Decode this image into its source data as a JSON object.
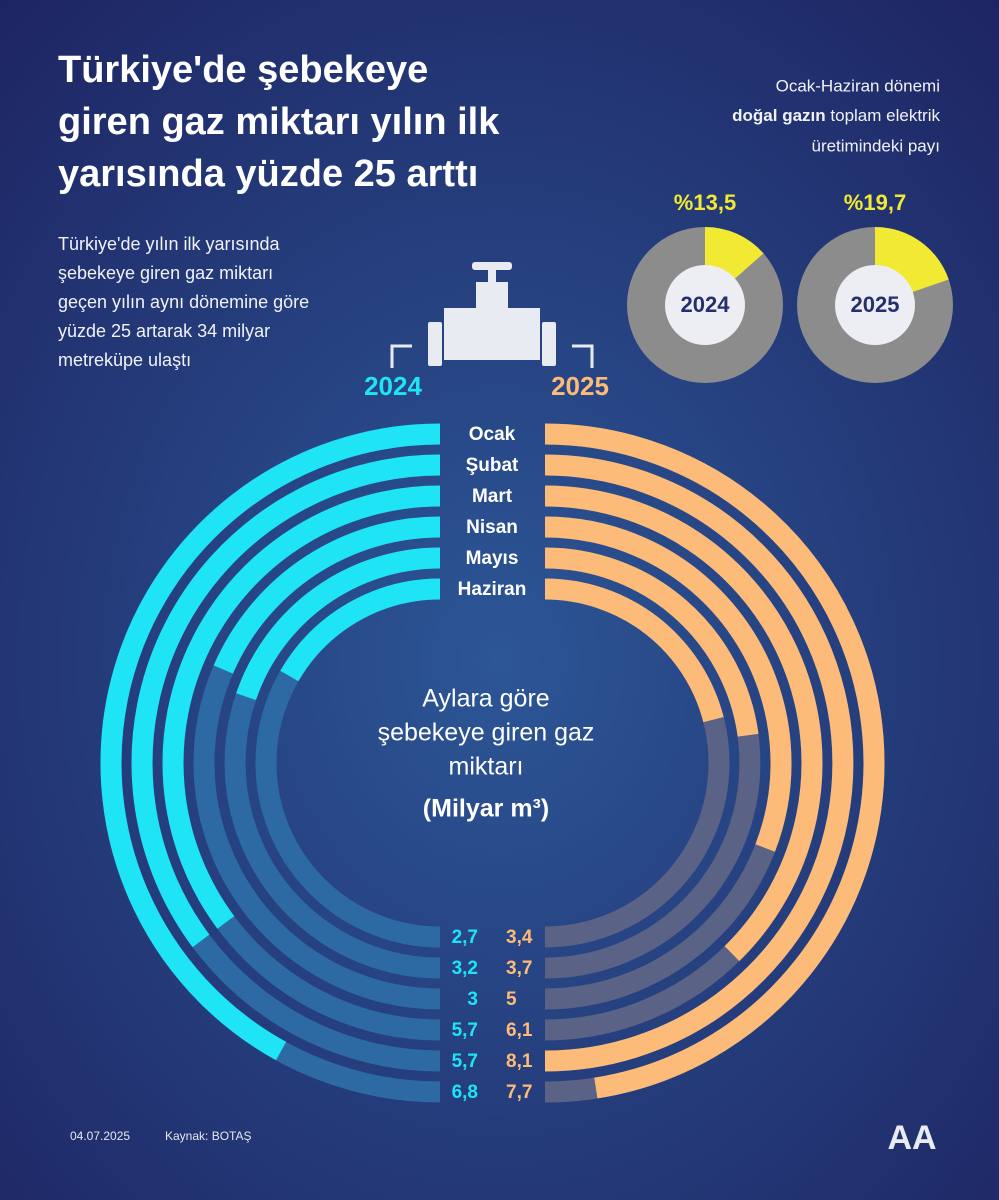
{
  "title": [
    "Türkiye'de şebekeye",
    "giren gaz miktarı yılın ilk",
    "yarısında yüzde 25 arttı"
  ],
  "description": [
    "Türkiye'de yılın ilk yarısında",
    "şebekeye giren gaz miktarı",
    "geçen yılın aynı dönemine göre",
    "yüzde 25 artarak 34 milyar",
    "metreküpe ulaştı"
  ],
  "pie_heading": {
    "line1": "Ocak-Haziran dönemi",
    "bold": "doğal gazın",
    "rest": "toplam elektrik",
    "line3": "üretimindeki payı"
  },
  "footer": {
    "date": "04.07.2025",
    "source": "Kaynak: BOTAŞ",
    "logo": "AA"
  },
  "chart_data": [
    {
      "type": "pie",
      "title": "2024",
      "values": [
        13.5
      ],
      "value_labels": [
        "%13,5"
      ],
      "color": "#f2e932",
      "rest_color": "#8c8c8c"
    },
    {
      "type": "pie",
      "title": "2025",
      "values": [
        19.7
      ],
      "value_labels": [
        "%19,7"
      ],
      "color": "#f2e932",
      "rest_color": "#8c8c8c"
    },
    {
      "type": "radial_bar",
      "title": [
        "Aylara göre",
        "şebekeye giren gaz",
        "miktarı"
      ],
      "unit": "(Milyar m³)",
      "categories": [
        "Ocak",
        "Şubat",
        "Mart",
        "Nisan",
        "Mayıs",
        "Haziran"
      ],
      "series": [
        {
          "name": "2024",
          "color": "#1fe4f5",
          "track_color": "#2d6aa3",
          "values": [
            6.8,
            5.7,
            5.7,
            3,
            3.2,
            2.7
          ],
          "value_labels": [
            "6,8",
            "5,7",
            "5,7",
            "3",
            "3,2",
            "2,7"
          ]
        },
        {
          "name": "2025",
          "color": "#fdbb79",
          "track_color": "#5a6285",
          "values": [
            7.7,
            8.1,
            6.1,
            5,
            3.7,
            3.4
          ],
          "value_labels": [
            "7,7",
            "8,1",
            "6,1",
            "5",
            "3,7",
            "3,4"
          ]
        }
      ]
    }
  ]
}
